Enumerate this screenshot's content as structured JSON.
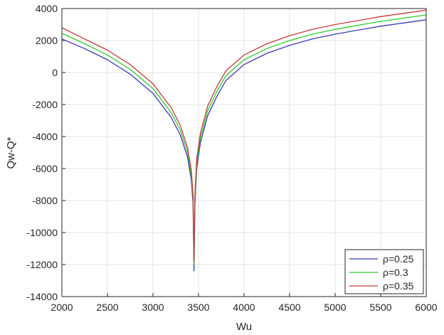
{
  "chart_data": {
    "type": "line",
    "title": "",
    "xlabel": "Wu",
    "ylabel": "Qw-Q*",
    "xlim": [
      2000,
      6000
    ],
    "ylim": [
      -14000,
      4000
    ],
    "xticks": [
      "2000",
      "2500",
      "3000",
      "3500",
      "4000",
      "4500",
      "5000",
      "5500",
      "6000"
    ],
    "yticks": [
      "4000",
      "2000",
      "0",
      "-2000",
      "-4000",
      "-6000",
      "-8000",
      "-10000",
      "-12000",
      "-14000"
    ],
    "grid": true,
    "legend_position": "bottom-right",
    "series": [
      {
        "name": "ρ=0.25",
        "color": "#3b3bb5",
        "x": [
          2000,
          2250,
          2500,
          2750,
          3000,
          3200,
          3300,
          3380,
          3420,
          3440,
          3450,
          3460,
          3480,
          3520,
          3600,
          3700,
          3800,
          4000,
          4250,
          4500,
          4750,
          5000,
          5500,
          6000
        ],
        "y": [
          2100,
          1500,
          800,
          -100,
          -1300,
          -2800,
          -3900,
          -5300,
          -6700,
          -8200,
          -12400,
          -8300,
          -6000,
          -4400,
          -2700,
          -1500,
          -500,
          500,
          1200,
          1700,
          2100,
          2400,
          2900,
          3300
        ]
      },
      {
        "name": "ρ=0.3",
        "color": "#2ecc2e",
        "x": [
          2000,
          2250,
          2500,
          2750,
          3000,
          3200,
          3300,
          3380,
          3420,
          3440,
          3450,
          3460,
          3480,
          3520,
          3600,
          3700,
          3800,
          4000,
          4250,
          4500,
          4750,
          5000,
          5500,
          6000
        ],
        "y": [
          2450,
          1800,
          1100,
          200,
          -1000,
          -2500,
          -3600,
          -5000,
          -6400,
          -7900,
          -12000,
          -8000,
          -5700,
          -4100,
          -2400,
          -1200,
          -200,
          800,
          1500,
          2000,
          2400,
          2700,
          3200,
          3600
        ]
      },
      {
        "name": "ρ=0.35",
        "color": "#c43b3b",
        "x": [
          2000,
          2250,
          2500,
          2750,
          3000,
          3200,
          3300,
          3380,
          3420,
          3440,
          3450,
          3460,
          3480,
          3520,
          3600,
          3700,
          3800,
          4000,
          4250,
          4500,
          4750,
          5000,
          5500,
          6000
        ],
        "y": [
          2800,
          2100,
          1400,
          500,
          -700,
          -2200,
          -3300,
          -4700,
          -6100,
          -7600,
          -11800,
          -7700,
          -5400,
          -3800,
          -2100,
          -900,
          100,
          1100,
          1800,
          2300,
          2700,
          3000,
          3500,
          3900
        ]
      }
    ]
  }
}
